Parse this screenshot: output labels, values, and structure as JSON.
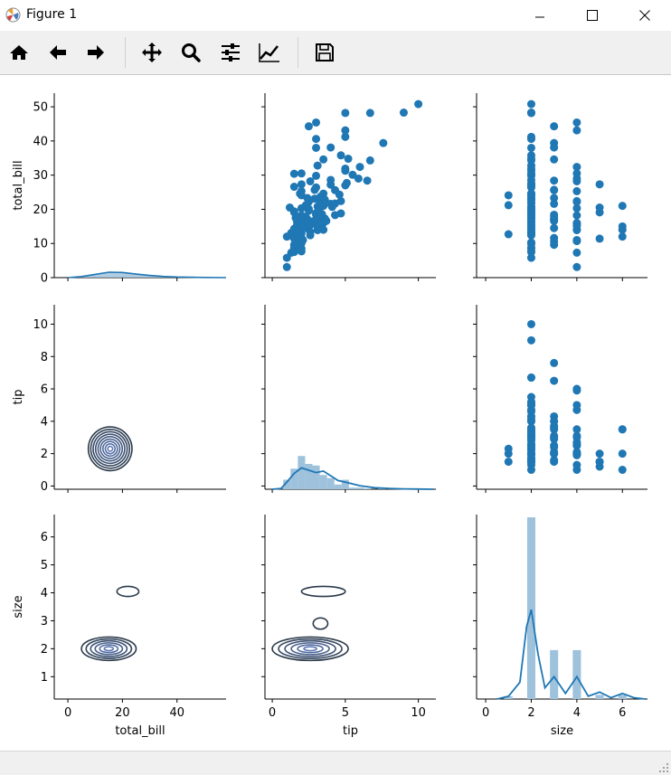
{
  "window": {
    "title": "Figure 1",
    "icon": "matplotlib-logo-icon",
    "controls": [
      "minimize-icon",
      "maximize-icon",
      "close-icon"
    ]
  },
  "toolbar": {
    "buttons": [
      {
        "name": "home-button",
        "icon": "home-icon"
      },
      {
        "name": "back-button",
        "icon": "arrow-left-icon"
      },
      {
        "name": "forward-button",
        "icon": "arrow-right-icon"
      },
      {
        "name": "pan-button",
        "icon": "move-icon"
      },
      {
        "name": "zoom-button",
        "icon": "magnifier-icon"
      },
      {
        "name": "configure-subplots-button",
        "icon": "sliders-icon"
      },
      {
        "name": "edit-axes-button",
        "icon": "line-chart-icon"
      },
      {
        "name": "save-button",
        "icon": "floppy-disk-icon"
      }
    ]
  },
  "chart_data": {
    "type": "pairplot",
    "variables": [
      "total_bill",
      "tip",
      "size"
    ],
    "colors": {
      "primary": "#1f77b4",
      "hist": "#9ec1dc",
      "contour_dark": "#2b3a4a"
    },
    "axes": {
      "total_bill": {
        "label": "total_bill",
        "lim": [
          -5,
          58
        ],
        "ticks": [
          0,
          20,
          40
        ],
        "ylim": [
          0,
          54
        ],
        "yticks": [
          0,
          10,
          20,
          30,
          40,
          50
        ]
      },
      "tip": {
        "label": "tip",
        "lim": [
          -0.5,
          11.2
        ],
        "ticks": [
          0,
          5,
          10
        ],
        "ylim": [
          -0.2,
          11.2
        ],
        "yticks": [
          0,
          2,
          4,
          6,
          8,
          10
        ]
      },
      "size": {
        "label": "size",
        "lim": [
          -0.4,
          7.1
        ],
        "ticks": [
          0,
          2,
          4,
          6
        ],
        "ylim": [
          0.2,
          6.8
        ],
        "yticks": [
          1,
          2,
          3,
          4,
          5,
          6
        ]
      }
    },
    "scatter_tip_vs_total_bill": [
      [
        50.8,
        10
      ],
      [
        48.3,
        9
      ],
      [
        48.2,
        6.7
      ],
      [
        44.3,
        2.5
      ],
      [
        48.2,
        5
      ],
      [
        45.4,
        3
      ],
      [
        41.2,
        5
      ],
      [
        43.1,
        5
      ],
      [
        39.4,
        7.6
      ],
      [
        40.6,
        3
      ],
      [
        35.8,
        4.7
      ],
      [
        38.1,
        4
      ],
      [
        38.0,
        3
      ],
      [
        32.4,
        6
      ],
      [
        34.8,
        5.2
      ],
      [
        34.3,
        6.7
      ],
      [
        34.6,
        3.5
      ],
      [
        32.8,
        3.1
      ],
      [
        31.9,
        5
      ],
      [
        30.1,
        5.5
      ],
      [
        30.5,
        2
      ],
      [
        31.3,
        5
      ],
      [
        28.4,
        6.5
      ],
      [
        29.0,
        5.9
      ],
      [
        28.6,
        4
      ],
      [
        27.2,
        4
      ],
      [
        27.3,
        2
      ],
      [
        27.0,
        5
      ],
      [
        26.4,
        3
      ],
      [
        25.6,
        4.3
      ],
      [
        25.3,
        2
      ],
      [
        24.6,
        3.5
      ],
      [
        23.7,
        3.3
      ],
      [
        24.1,
        2
      ],
      [
        22.8,
        3.2
      ],
      [
        23.3,
        2.4
      ],
      [
        22.2,
        2.5
      ],
      [
        22.8,
        3.6
      ],
      [
        21.0,
        3.5
      ],
      [
        20.7,
        4.1
      ],
      [
        21.6,
        4
      ],
      [
        20.8,
        3.1
      ],
      [
        20.3,
        2
      ],
      [
        19.8,
        3.2
      ],
      [
        19.4,
        1.5
      ],
      [
        18.4,
        3
      ],
      [
        18.9,
        3
      ],
      [
        18.2,
        2
      ],
      [
        18.3,
        4.3
      ],
      [
        17.8,
        2.3
      ],
      [
        17.3,
        3.6
      ],
      [
        17.1,
        2.4
      ],
      [
        16.3,
        2
      ],
      [
        16.0,
        3.5
      ],
      [
        16.3,
        1.7
      ],
      [
        15.0,
        2
      ],
      [
        15.4,
        2.2
      ],
      [
        14.8,
        3.1
      ],
      [
        14.5,
        2
      ],
      [
        14.1,
        2.5
      ],
      [
        13.4,
        2.6
      ],
      [
        13.0,
        2
      ],
      [
        12.7,
        1.5
      ],
      [
        13.8,
        2
      ],
      [
        12.5,
        1.6
      ],
      [
        11.6,
        2
      ],
      [
        11.4,
        1.5
      ],
      [
        10.3,
        1.7
      ],
      [
        10.7,
        2
      ],
      [
        10.1,
        2
      ],
      [
        9.6,
        1.5
      ],
      [
        8.8,
        1.5
      ],
      [
        8.5,
        2
      ],
      [
        7.3,
        1.3
      ],
      [
        7.7,
        2
      ],
      [
        5.8,
        1
      ],
      [
        3.1,
        1
      ],
      [
        7.5,
        1.5
      ],
      [
        9.9,
        1.7
      ],
      [
        12.0,
        1
      ],
      [
        13.1,
        1.3
      ],
      [
        14.3,
        1.5
      ],
      [
        15.7,
        2.7
      ],
      [
        16.9,
        3.1
      ],
      [
        17.5,
        1.6
      ],
      [
        19.1,
        1.5
      ],
      [
        20.1,
        2.5
      ],
      [
        21.7,
        4.3
      ],
      [
        22.4,
        4.7
      ],
      [
        23.1,
        2.9
      ],
      [
        24.6,
        1.9
      ],
      [
        25.7,
        2.9
      ],
      [
        26.6,
        1.5
      ],
      [
        28.2,
        2.6
      ],
      [
        29.8,
        3
      ],
      [
        30.4,
        1.5
      ],
      [
        16.6,
        3.7
      ],
      [
        18.8,
        4.7
      ],
      [
        13.9,
        3.1
      ],
      [
        12.4,
        2.6
      ],
      [
        15.5,
        1.7
      ],
      [
        17.9,
        2.1
      ],
      [
        19.6,
        2.5
      ],
      [
        14.0,
        3.5
      ],
      [
        10.6,
        1.6
      ],
      [
        11.0,
        2.1
      ],
      [
        22.0,
        3.4
      ],
      [
        27.7,
        5.1
      ],
      [
        20.5,
        1.2
      ],
      [
        18.6,
        3.4
      ],
      [
        16.5,
        2.8
      ],
      [
        15.2,
        1.9
      ],
      [
        21.2,
        2.3
      ],
      [
        24.3,
        4.6
      ]
    ],
    "kde_total_bill": {
      "x": [
        0,
        5,
        10,
        15,
        20,
        25,
        30,
        35,
        40,
        50,
        58
      ],
      "y": [
        0,
        0.2,
        0.6,
        1.0,
        0.95,
        0.65,
        0.4,
        0.22,
        0.12,
        0.03,
        0
      ]
    },
    "hist_tip": {
      "bins": [
        [
          1,
          0.6
        ],
        [
          1.5,
          1.3
        ],
        [
          2,
          2.1
        ],
        [
          2.5,
          1.6
        ],
        [
          3,
          1.5
        ],
        [
          3.5,
          0.9
        ],
        [
          4,
          0.7
        ],
        [
          4.5,
          0.3
        ],
        [
          5,
          0.6
        ],
        [
          5.5,
          0.1
        ],
        [
          6,
          0.1
        ],
        [
          6.5,
          0.05
        ],
        [
          7.5,
          0.03
        ],
        [
          10,
          0.02
        ]
      ]
    },
    "kde_tip": {
      "x": [
        0,
        0.6,
        1,
        1.5,
        2,
        2.5,
        3,
        3.5,
        4,
        4.5,
        5,
        6,
        7,
        8,
        9,
        10,
        11
      ],
      "y": [
        0,
        0.05,
        0.45,
        1.0,
        1.35,
        1.2,
        1.05,
        1.15,
        0.85,
        0.55,
        0.45,
        0.22,
        0.1,
        0.05,
        0.02,
        0.01,
        0
      ]
    },
    "hist_size": {
      "bins": [
        [
          1,
          0.1
        ],
        [
          2,
          6.5
        ],
        [
          3,
          1.75
        ],
        [
          4,
          1.75
        ],
        [
          5,
          0.15
        ],
        [
          6,
          0.15
        ]
      ]
    },
    "kde_size": {
      "x": [
        0.5,
        1,
        1.5,
        1.8,
        2,
        2.3,
        2.6,
        3,
        3.5,
        4,
        4.5,
        5,
        5.5,
        6,
        6.5,
        7
      ],
      "y": [
        0,
        0.1,
        0.6,
        2.6,
        3.2,
        1.6,
        0.4,
        0.8,
        0.2,
        0.8,
        0.1,
        0.25,
        0.05,
        0.2,
        0.05,
        0
      ]
    },
    "contours": [
      {
        "panel": "tip_vs_total_bill",
        "center": [
          15.5,
          2.3
        ],
        "rx": 8,
        "ry": 1.35,
        "angle_deg": -35,
        "levels": 9
      },
      {
        "panel": "size_vs_total_bill",
        "center": [
          15,
          2
        ],
        "rx": 10,
        "ry": 0.42,
        "angle_deg": 0,
        "levels": 6,
        "extra": [
          [
            22,
            4.05,
            4,
            0.18
          ]
        ]
      },
      {
        "panel": "size_vs_tip",
        "center": [
          2.6,
          2
        ],
        "rx": 2.6,
        "ry": 0.42,
        "angle_deg": 0,
        "levels": 6,
        "extra": [
          [
            3.5,
            4.05,
            1.5,
            0.18
          ],
          [
            3.3,
            2.9,
            0.5,
            0.2
          ]
        ]
      }
    ]
  }
}
